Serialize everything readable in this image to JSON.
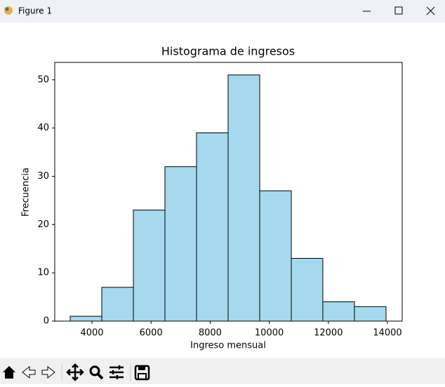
{
  "window": {
    "title": "Figure 1"
  },
  "chart_data": {
    "type": "histogram",
    "title": "Histograma de ingresos",
    "x_label": "Ingreso mensual",
    "y_label": "Frecuencia",
    "bins": [
      3264,
      4333,
      5402,
      6470,
      7539,
      8608,
      9677,
      10746,
      11814,
      12883,
      13952
    ],
    "values": [
      1,
      7,
      23,
      32,
      39,
      51,
      27,
      13,
      4,
      3
    ],
    "color": "#a6d9ee",
    "edgecolor": "#000000",
    "xlim": [
      2741,
      14499
    ],
    "ylim": [
      0,
      53.6
    ],
    "xticks": [
      4000,
      6000,
      8000,
      10000,
      12000,
      14000
    ],
    "yticks": [
      0,
      10,
      20,
      30,
      40,
      50
    ]
  }
}
